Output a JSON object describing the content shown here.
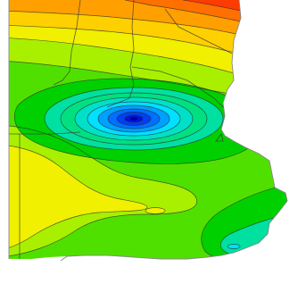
{
  "map": {
    "kind": "contour-map",
    "color_scale": {
      "low_to_high": [
        "#0000c8",
        "#0050ff",
        "#00a0ff",
        "#00e0ff",
        "#00e0a0",
        "#00d000",
        "#50e000",
        "#a8f000",
        "#f0f000",
        "#ffd000",
        "#ffa000",
        "#ff7000",
        "#ff3c00"
      ]
    },
    "colors": {
      "minimum": "#0000c8",
      "maximum": "#ff3c00",
      "background": "#ffffff"
    }
  }
}
